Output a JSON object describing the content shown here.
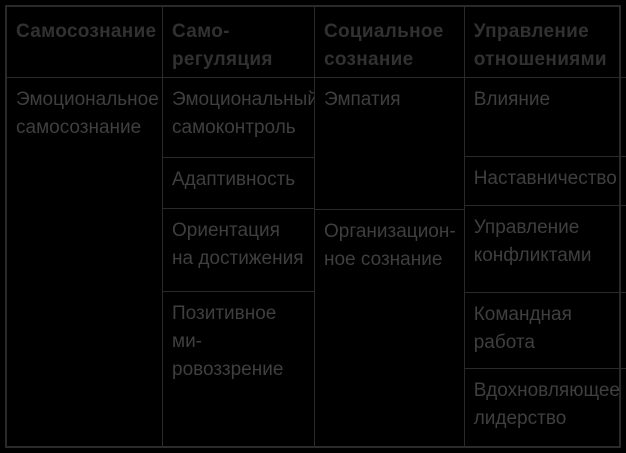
{
  "colors": {
    "background": "#000000",
    "grid_line": "#2a2a2a",
    "header_text": "#313131",
    "body_text": "#3f3f3f"
  },
  "table": {
    "columns": [
      {
        "header": "Самосознание",
        "cells": [
          "Эмоциональное\nсамосознание"
        ]
      },
      {
        "header": "Само-\nрегуляция",
        "cells": [
          "Эмоциональный\nсамоконтроль",
          "Адаптивность",
          "Ориентация\nна достижения",
          "Позитивное ми-\nровоззрение"
        ]
      },
      {
        "header": "Социальное\nсознание",
        "cells": [
          "Эмпатия",
          "Организацион-\nное сознание"
        ]
      },
      {
        "header": "Управление\nотношениями",
        "cells": [
          "Влияние",
          "Наставничество",
          "Управление\nконфликтами",
          "Командная\nработа",
          "Вдохновляющее\nлидерство"
        ]
      }
    ]
  },
  "chart_data": {
    "type": "table",
    "columns": [
      "Самосознание",
      "Само-регуляция",
      "Социальное сознание",
      "Управление отношениями"
    ],
    "cells_by_column": [
      [
        "Эмоциональное самосознание"
      ],
      [
        "Эмоциональный самоконтроль",
        "Адаптивность",
        "Ориентация на достижения",
        "Позитивное мировоззрение"
      ],
      [
        "Эмпатия",
        "Организационное сознание"
      ],
      [
        "Влияние",
        "Наставничество",
        "Управление конфликтами",
        "Командная работа",
        "Вдохновляющее лидерство"
      ]
    ]
  }
}
